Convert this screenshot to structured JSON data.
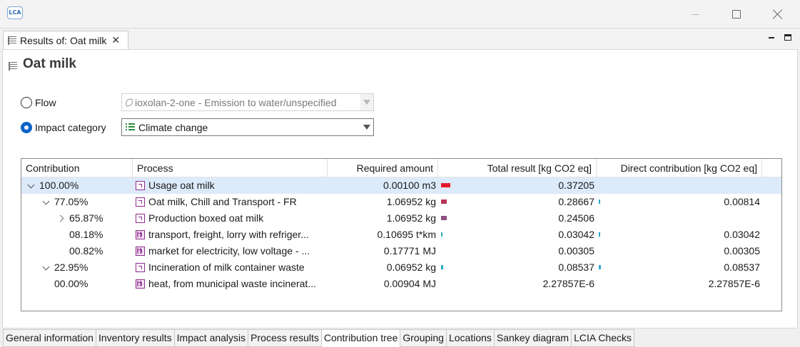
{
  "app": {
    "logo_text": "LCA"
  },
  "editor_tab": {
    "title": "Results of: Oat milk"
  },
  "page": {
    "title": "Oat milk"
  },
  "selection": {
    "flow": {
      "label": "Flow",
      "selected": false,
      "value": "ioxolan-2-one - Emission to water/unspecified",
      "enabled": false
    },
    "impact": {
      "label": "Impact category",
      "selected": true,
      "value": "Climate change",
      "enabled": true
    }
  },
  "table": {
    "columns": [
      "Contribution",
      "Process",
      "Required amount",
      "Total result [kg CO2 eq]",
      "Direct contribution [kg CO2 eq]"
    ],
    "rows": [
      {
        "contribution": "100.00%",
        "expander": "down",
        "indent": 0,
        "process": "Usage oat milk",
        "icon": "process-icon",
        "amount": "0.00100 m3",
        "amount_bar": 0.92,
        "amount_bar_color": "#e8192c",
        "total": "0.37205",
        "total_bar": 0,
        "total_bar_color": "",
        "direct": "",
        "selected": true
      },
      {
        "contribution": "77.05%",
        "expander": "down",
        "indent": 1,
        "process": "Oat milk, Chill and Transport - FR",
        "icon": "process-icon",
        "amount": "1.06952 kg",
        "amount_bar": 0.6,
        "amount_bar_color": "#b5345a",
        "total": "0.28667",
        "total_bar": 0.1,
        "total_bar_color": "#29a7c9",
        "direct": "0.00814",
        "selected": false
      },
      {
        "contribution": "65.87%",
        "expander": "right",
        "indent": 2,
        "process": "Production boxed oat milk",
        "icon": "process-icon",
        "amount": "1.06952 kg",
        "amount_bar": 0.6,
        "amount_bar_color": "#8f4e84",
        "total": "0.24506",
        "total_bar": 0,
        "total_bar_color": "",
        "direct": "",
        "selected": false
      },
      {
        "contribution": "08.18%",
        "expander": "",
        "indent": 2,
        "process": "transport, freight, lorry with refriger...",
        "icon": "system-process-icon",
        "amount": "0.10695 t*km",
        "amount_bar": 0.12,
        "amount_bar_color": "#29a7c9",
        "total": "0.03042",
        "total_bar": 0.1,
        "total_bar_color": "#29a7c9",
        "direct": "0.03042",
        "selected": false
      },
      {
        "contribution": "00.82%",
        "expander": "",
        "indent": 2,
        "process": "market for electricity, low voltage - ...",
        "icon": "system-process-icon",
        "amount": "0.17771 MJ",
        "amount_bar": 0,
        "amount_bar_color": "",
        "total": "0.00305",
        "total_bar": 0,
        "total_bar_color": "",
        "direct": "0.00305",
        "selected": false
      },
      {
        "contribution": "22.95%",
        "expander": "down",
        "indent": 1,
        "process": "Incineration of milk container waste",
        "icon": "process-icon",
        "amount": "0.06952 kg",
        "amount_bar": 0.22,
        "amount_bar_color": "#29a7c9",
        "total": "0.08537",
        "total_bar": 0.22,
        "total_bar_color": "#29a7c9",
        "direct": "0.08537",
        "selected": false
      },
      {
        "contribution": "00.00%",
        "expander": "",
        "indent": 1,
        "process": "heat, from municipal waste incinerat...",
        "icon": "system-process-icon",
        "amount": "0.00904 MJ",
        "amount_bar": 0,
        "amount_bar_color": "",
        "total": "2.27857E-6",
        "total_bar": 0,
        "total_bar_color": "",
        "direct": "2.27857E-6",
        "selected": false
      }
    ]
  },
  "bottom_tabs": [
    {
      "label": "General information",
      "active": false
    },
    {
      "label": "Inventory results",
      "active": false
    },
    {
      "label": "Impact analysis",
      "active": false
    },
    {
      "label": "Process results",
      "active": false
    },
    {
      "label": "Contribution tree",
      "active": true
    },
    {
      "label": "Grouping",
      "active": false
    },
    {
      "label": "Locations",
      "active": false
    },
    {
      "label": "Sankey diagram",
      "active": false
    },
    {
      "label": "LCIA Checks",
      "active": false
    }
  ]
}
